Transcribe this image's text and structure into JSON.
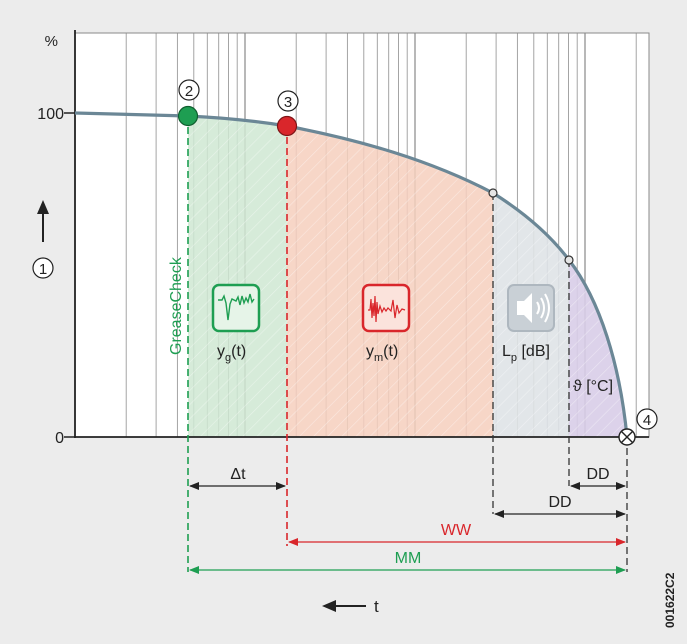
{
  "axis": {
    "y_unit": "%",
    "y_ticks": [
      "100",
      "0"
    ],
    "x_label": "t"
  },
  "markers": [
    "1",
    "2",
    "3",
    "4"
  ],
  "labels": {
    "greasecheck": "GreaseCheck",
    "yg_main": "y",
    "yg_sub": "g",
    "yg_tail": "(t)",
    "ym_main": "y",
    "ym_sub": "m",
    "ym_tail": "(t)",
    "lp_main": "L",
    "lp_sub": "p",
    "lp_tail": " [dB]",
    "theta": "ϑ [°C]"
  },
  "dimensions": {
    "delta_t": "Δt",
    "dd_small": "DD",
    "dd_large": "DD",
    "ww": "WW",
    "mm": "MM"
  },
  "doc_code": "001622C2",
  "icons": [
    "vibration-signal-green-icon",
    "vibration-signal-red-icon",
    "speaker-icon"
  ],
  "colors": {
    "background": "#ececec",
    "plot_bg": "#ffffff",
    "curve": "#6b8796",
    "green": "#1e9e52",
    "red": "#d9262b",
    "green_zone": "#d3ead6",
    "red_zone": "#f5d5c7",
    "gray_zone": "#e0e4e8",
    "purple_zone": "#ddd3ea"
  }
}
